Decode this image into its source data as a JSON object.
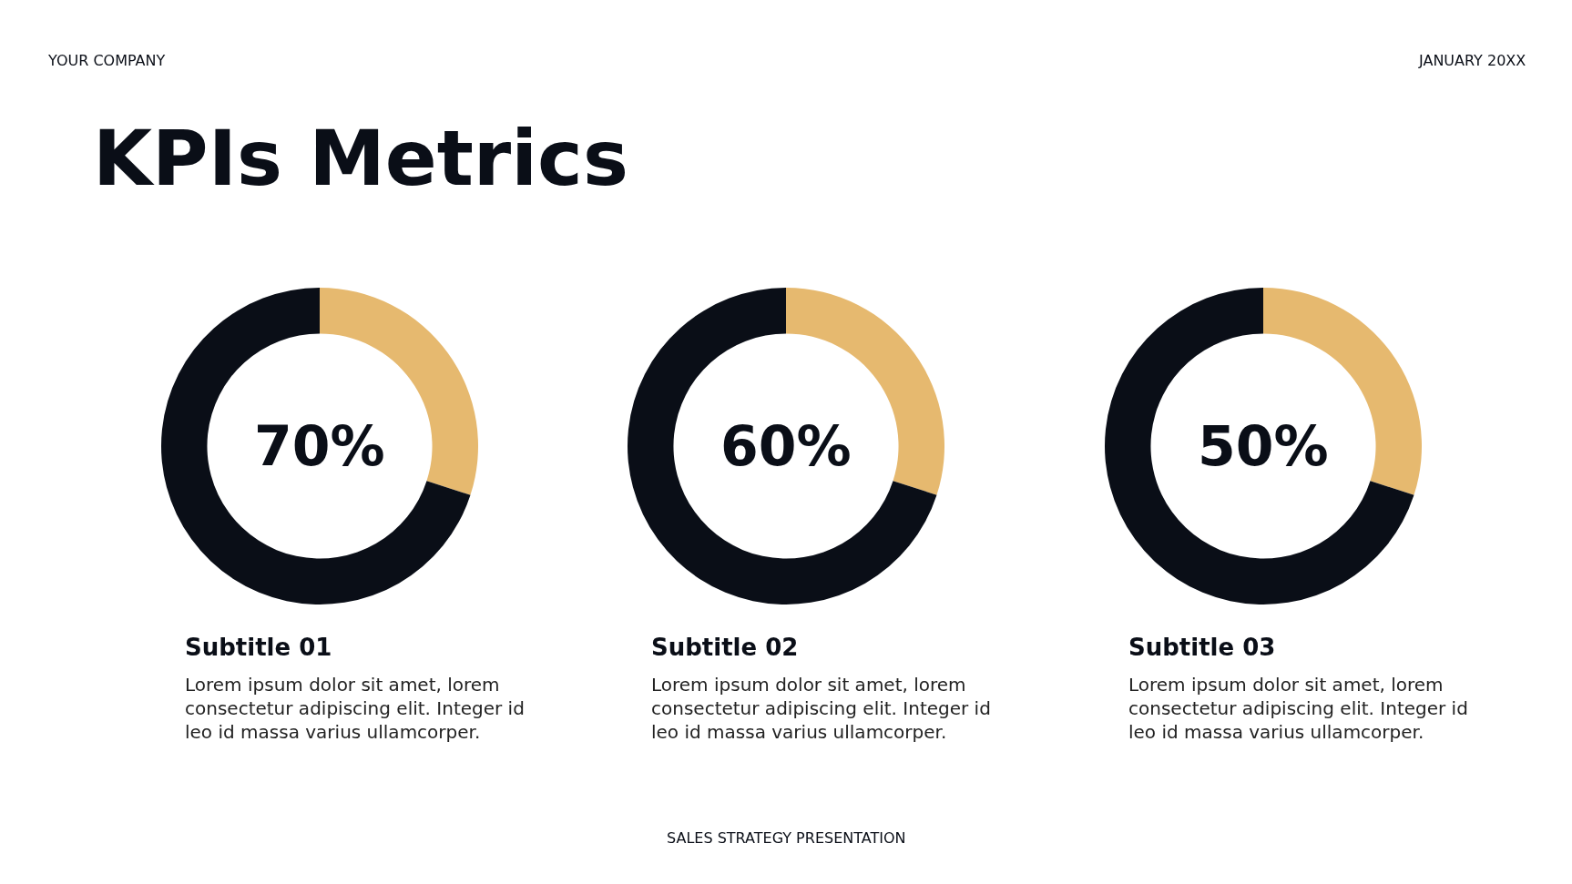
{
  "chart_data": [
    {
      "type": "donut",
      "categories": [
        null,
        null
      ],
      "values": [
        30,
        70
      ],
      "colors": [
        "#e6b96f",
        "#0a0e17"
      ],
      "subtitle": "Subtitle 01",
      "annotations": [
        "70%",
        "Lorem ipsum dolor sit amet, lorem\nconsectetur adipiscing elit. Integer id\nleo id massa varius ullamcorper.",
        "YOUR COMPANY",
        "JANUARY 20XX",
        "KPIs Metrics",
        "SALES STRATEGY PRESENTATION"
      ]
    },
    {
      "type": "donut",
      "categories": [
        null,
        null
      ],
      "values": [
        30,
        70
      ],
      "colors": [
        "#e6b96f",
        "#0a0e17"
      ],
      "subtitle": "Subtitle 02",
      "annotations": [
        "60%",
        "Lorem ipsum dolor sit amet, lorem\nconsectetur adipiscing elit. Integer id\nleo id massa varius ullamcorper."
      ]
    },
    {
      "type": "donut",
      "categories": [
        null,
        null
      ],
      "values": [
        30,
        70
      ],
      "colors": [
        "#e6b96f",
        "#0a0e17"
      ],
      "subtitle": "Subtitle 03",
      "annotations": [
        "50%",
        "Lorem ipsum dolor sit amet, lorem\nconsectetur adipiscing elit. Integer id\nleo id massa varius ullamcorper."
      ]
    }
  ]
}
